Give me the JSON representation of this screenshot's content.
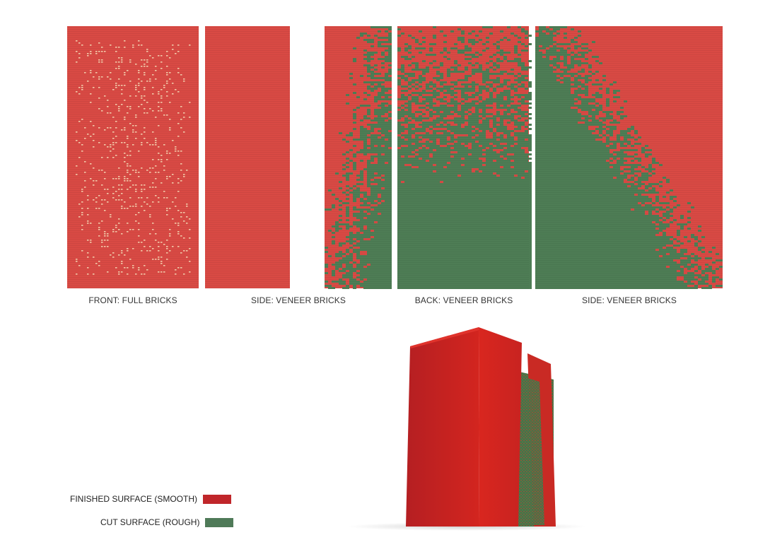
{
  "elevations": [
    {
      "id": "front",
      "caption": "FRONT: FULL BRICKS",
      "pattern": "speckle"
    },
    {
      "id": "side1",
      "caption": "SIDE: VENEER BRICKS",
      "pattern": "solid"
    },
    {
      "id": "back",
      "caption": "BACK: VENEER BRICKS",
      "pattern": "cut-center"
    },
    {
      "id": "side2",
      "caption": "SIDE: VENEER BRICKS",
      "pattern": "cut-diagonal"
    }
  ],
  "legend": [
    {
      "label": "FINISHED SURFACE (SMOOTH)",
      "color": "#c0262a"
    },
    {
      "label": "CUT SURFACE (ROUGH)",
      "color": "#4f7a58"
    }
  ],
  "colors": {
    "finished": "#d94a44",
    "cut": "#4e7d55",
    "speckle": "#f3c9a8",
    "brickline": "#b33a34"
  }
}
